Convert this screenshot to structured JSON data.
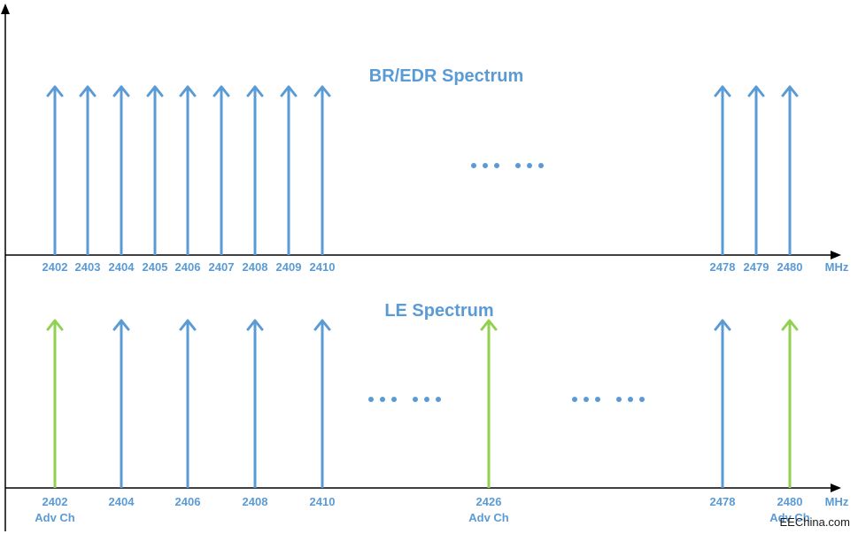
{
  "colors": {
    "data_channel": "#5b9bd5",
    "adv_channel": "#92d050",
    "axis": "#000000",
    "text": "#5b9bd5"
  },
  "bredr": {
    "title": "BR/EDR Spectrum",
    "unit": "MHz",
    "ellipsis": "... ...",
    "channels": [
      {
        "freq": "2402",
        "type": "data"
      },
      {
        "freq": "2403",
        "type": "data"
      },
      {
        "freq": "2404",
        "type": "data"
      },
      {
        "freq": "2405",
        "type": "data"
      },
      {
        "freq": "2406",
        "type": "data"
      },
      {
        "freq": "2407",
        "type": "data"
      },
      {
        "freq": "2408",
        "type": "data"
      },
      {
        "freq": "2409",
        "type": "data"
      },
      {
        "freq": "2410",
        "type": "data"
      },
      {
        "freq": "2478",
        "type": "data"
      },
      {
        "freq": "2479",
        "type": "data"
      },
      {
        "freq": "2480",
        "type": "data"
      }
    ]
  },
  "le": {
    "title": "LE Spectrum",
    "unit": "MHz",
    "ellipsis": "... ...",
    "channels": [
      {
        "freq": "2402",
        "type": "adv",
        "sublabel": "Adv Ch"
      },
      {
        "freq": "2404",
        "type": "data"
      },
      {
        "freq": "2406",
        "type": "data"
      },
      {
        "freq": "2408",
        "type": "data"
      },
      {
        "freq": "2410",
        "type": "data"
      },
      {
        "freq": "2426",
        "type": "adv",
        "sublabel": "Adv Ch"
      },
      {
        "freq": "2478",
        "type": "data"
      },
      {
        "freq": "2480",
        "type": "adv",
        "sublabel": "Adv Ch"
      }
    ]
  },
  "watermark": "EEChina.com"
}
